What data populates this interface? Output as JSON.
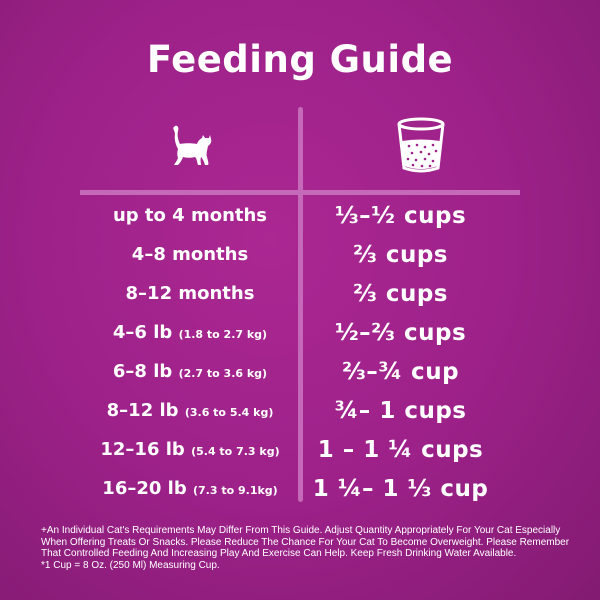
{
  "title": "Feeding Guide",
  "icons": {
    "left": "kitten-icon",
    "right": "measuring-cup-icon"
  },
  "colors": {
    "background": "#9d2189",
    "divider": "#c46ab8",
    "text": "#ffffff"
  },
  "rows": [
    {
      "label": "up to 4 months",
      "sub": "",
      "amount": "⅓–½ cups"
    },
    {
      "label": "4–8 months",
      "sub": "",
      "amount": "⅔ cups"
    },
    {
      "label": "8–12 months",
      "sub": "",
      "amount": "⅔ cups"
    },
    {
      "label": "4–6 lb",
      "sub": "(1.8 to 2.7 kg)",
      "amount": "½–⅔ cups"
    },
    {
      "label": "6–8 lb",
      "sub": "(2.7 to 3.6 kg)",
      "amount": "⅔–¾ cup"
    },
    {
      "label": "8–12 lb",
      "sub": "(3.6 to 5.4 kg)",
      "amount": "¾– 1 cups"
    },
    {
      "label": "12–16 lb",
      "sub": "(5.4 to 7.3 kg)",
      "amount": "1 – 1 ¼ cups"
    },
    {
      "label": "16–20 lb",
      "sub": "(7.3 to 9.1kg)",
      "amount": "1 ¼– 1 ⅓ cup"
    }
  ],
  "footnote": [
    "+An Individual Cat's Requirements May Differ From This Guide.  Adjust Quantity Appropriately For Your Cat Especially",
    "When Offering Treats Or Snacks.  Please Reduce The Chance For Your Cat To Become Overweight.  Please Remember",
    "That Controlled Feeding And Increasing Play And Exercise Can Help.  Keep Fresh Drinking Water Available.",
    "*1 Cup = 8 Oz. (250 Ml) Measuring Cup."
  ]
}
